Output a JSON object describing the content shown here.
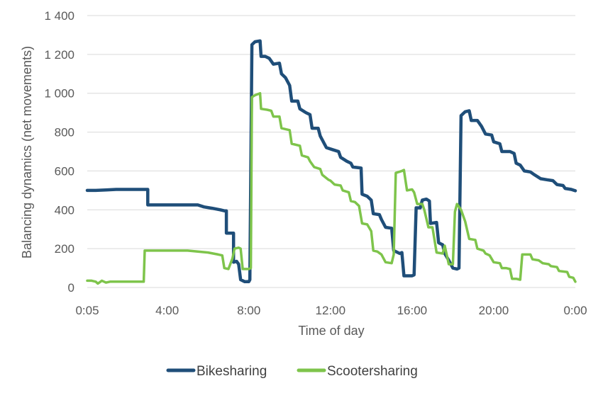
{
  "chart_data": {
    "type": "line",
    "xlabel": "Time of day",
    "ylabel": "Balancing dynamics (net movements)",
    "x_ticks": [
      "0:05",
      "4:00",
      "8:00",
      "12:00",
      "16:00",
      "20:00",
      "0:00"
    ],
    "x_tick_hours": [
      0.083,
      4,
      8,
      12,
      16,
      20,
      24
    ],
    "xlim": [
      0.083,
      24
    ],
    "ylim": [
      0,
      1400
    ],
    "y_ticks": [
      0,
      200,
      400,
      600,
      800,
      1000,
      1200,
      1400
    ],
    "y_tick_labels": [
      "0",
      "200",
      "400",
      "600",
      "800",
      "1 000",
      "1 200",
      "1 400"
    ],
    "grid": "horizontal",
    "legend_position": "bottom",
    "series": [
      {
        "name": "Bikesharing",
        "color": "#1f4e79",
        "points": [
          [
            0.083,
            500
          ],
          [
            0.5,
            500
          ],
          [
            1,
            502
          ],
          [
            1.5,
            505
          ],
          [
            2,
            505
          ],
          [
            2.5,
            505
          ],
          [
            2.9,
            505
          ],
          [
            3.05,
            505
          ],
          [
            3.05,
            425
          ],
          [
            3.5,
            425
          ],
          [
            4,
            425
          ],
          [
            4.5,
            425
          ],
          [
            5,
            425
          ],
          [
            5.5,
            425
          ],
          [
            5.8,
            415
          ],
          [
            6.2,
            408
          ],
          [
            6.6,
            400
          ],
          [
            6.8,
            395
          ],
          [
            6.9,
            395
          ],
          [
            6.9,
            280
          ],
          [
            7.1,
            280
          ],
          [
            7.25,
            280
          ],
          [
            7.25,
            130
          ],
          [
            7.4,
            135
          ],
          [
            7.5,
            120
          ],
          [
            7.6,
            40
          ],
          [
            7.8,
            30
          ],
          [
            8.0,
            30
          ],
          [
            8.05,
            40
          ],
          [
            8.15,
            1250
          ],
          [
            8.3,
            1265
          ],
          [
            8.55,
            1270
          ],
          [
            8.6,
            1190
          ],
          [
            8.8,
            1190
          ],
          [
            9.0,
            1180
          ],
          [
            9.2,
            1150
          ],
          [
            9.5,
            1155
          ],
          [
            9.6,
            1100
          ],
          [
            9.8,
            1080
          ],
          [
            10.0,
            1040
          ],
          [
            10.1,
            960
          ],
          [
            10.4,
            960
          ],
          [
            10.5,
            920
          ],
          [
            10.8,
            900
          ],
          [
            11.0,
            890
          ],
          [
            11.1,
            820
          ],
          [
            11.4,
            820
          ],
          [
            11.5,
            780
          ],
          [
            11.8,
            720
          ],
          [
            12.1,
            710
          ],
          [
            12.4,
            700
          ],
          [
            12.5,
            670
          ],
          [
            12.8,
            650
          ],
          [
            13.0,
            640
          ],
          [
            13.1,
            620
          ],
          [
            13.5,
            615
          ],
          [
            13.55,
            480
          ],
          [
            13.8,
            470
          ],
          [
            14.0,
            450
          ],
          [
            14.1,
            380
          ],
          [
            14.4,
            375
          ],
          [
            14.5,
            350
          ],
          [
            14.7,
            310
          ],
          [
            15.0,
            305
          ],
          [
            15.1,
            190
          ],
          [
            15.4,
            175
          ],
          [
            15.5,
            180
          ],
          [
            15.6,
            60
          ],
          [
            16.0,
            60
          ],
          [
            16.1,
            65
          ],
          [
            16.2,
            410
          ],
          [
            16.4,
            410
          ],
          [
            16.5,
            450
          ],
          [
            16.7,
            455
          ],
          [
            16.85,
            445
          ],
          [
            16.9,
            330
          ],
          [
            17.2,
            335
          ],
          [
            17.3,
            230
          ],
          [
            17.5,
            220
          ],
          [
            17.6,
            175
          ],
          [
            17.8,
            140
          ],
          [
            18.0,
            100
          ],
          [
            18.2,
            95
          ],
          [
            18.3,
            100
          ],
          [
            18.4,
            885
          ],
          [
            18.6,
            905
          ],
          [
            18.8,
            910
          ],
          [
            18.9,
            860
          ],
          [
            19.2,
            860
          ],
          [
            19.4,
            830
          ],
          [
            19.6,
            790
          ],
          [
            19.9,
            785
          ],
          [
            20.0,
            750
          ],
          [
            20.3,
            740
          ],
          [
            20.4,
            700
          ],
          [
            20.8,
            700
          ],
          [
            21.0,
            690
          ],
          [
            21.1,
            640
          ],
          [
            21.3,
            630
          ],
          [
            21.5,
            600
          ],
          [
            21.8,
            595
          ],
          [
            22.0,
            580
          ],
          [
            22.3,
            560
          ],
          [
            22.6,
            555
          ],
          [
            22.9,
            550
          ],
          [
            23.1,
            530
          ],
          [
            23.4,
            525
          ],
          [
            23.5,
            510
          ],
          [
            23.8,
            505
          ],
          [
            24.0,
            498
          ]
        ]
      },
      {
        "name": "Scootersharing",
        "color": "#7ec44b",
        "points": [
          [
            0.083,
            35
          ],
          [
            0.3,
            35
          ],
          [
            0.5,
            30
          ],
          [
            0.6,
            20
          ],
          [
            0.8,
            35
          ],
          [
            1.0,
            25
          ],
          [
            1.2,
            30
          ],
          [
            1.5,
            30
          ],
          [
            2.0,
            30
          ],
          [
            2.5,
            30
          ],
          [
            2.85,
            30
          ],
          [
            2.9,
            190
          ],
          [
            3.1,
            190
          ],
          [
            3.5,
            190
          ],
          [
            4,
            190
          ],
          [
            4.5,
            190
          ],
          [
            5,
            190
          ],
          [
            5.5,
            185
          ],
          [
            6,
            180
          ],
          [
            6.5,
            170
          ],
          [
            6.7,
            165
          ],
          [
            6.8,
            100
          ],
          [
            7.0,
            95
          ],
          [
            7.2,
            150
          ],
          [
            7.3,
            200
          ],
          [
            7.5,
            205
          ],
          [
            7.6,
            200
          ],
          [
            7.7,
            95
          ],
          [
            8.0,
            95
          ],
          [
            8.1,
            100
          ],
          [
            8.15,
            980
          ],
          [
            8.3,
            990
          ],
          [
            8.55,
            1000
          ],
          [
            8.6,
            920
          ],
          [
            8.9,
            915
          ],
          [
            9.1,
            910
          ],
          [
            9.2,
            880
          ],
          [
            9.5,
            880
          ],
          [
            9.6,
            820
          ],
          [
            10.0,
            810
          ],
          [
            10.1,
            740
          ],
          [
            10.5,
            730
          ],
          [
            10.6,
            680
          ],
          [
            10.9,
            670
          ],
          [
            11.0,
            650
          ],
          [
            11.2,
            620
          ],
          [
            11.5,
            610
          ],
          [
            11.6,
            580
          ],
          [
            11.9,
            555
          ],
          [
            12.0,
            550
          ],
          [
            12.2,
            530
          ],
          [
            12.5,
            525
          ],
          [
            12.6,
            500
          ],
          [
            12.9,
            490
          ],
          [
            13.0,
            445
          ],
          [
            13.2,
            440
          ],
          [
            13.4,
            420
          ],
          [
            13.55,
            330
          ],
          [
            13.8,
            325
          ],
          [
            14.0,
            290
          ],
          [
            14.1,
            190
          ],
          [
            14.3,
            185
          ],
          [
            14.5,
            170
          ],
          [
            14.7,
            130
          ],
          [
            15.0,
            125
          ],
          [
            15.1,
            170
          ],
          [
            15.2,
            590
          ],
          [
            15.5,
            600
          ],
          [
            15.6,
            605
          ],
          [
            15.75,
            500
          ],
          [
            16.0,
            505
          ],
          [
            16.1,
            490
          ],
          [
            16.25,
            430
          ],
          [
            16.5,
            430
          ],
          [
            16.6,
            400
          ],
          [
            16.8,
            310
          ],
          [
            17.0,
            310
          ],
          [
            17.2,
            180
          ],
          [
            17.5,
            175
          ],
          [
            17.6,
            215
          ],
          [
            17.8,
            120
          ],
          [
            18.0,
            120
          ],
          [
            18.1,
            390
          ],
          [
            18.2,
            430
          ],
          [
            18.4,
            400
          ],
          [
            18.6,
            340
          ],
          [
            18.8,
            250
          ],
          [
            19.1,
            245
          ],
          [
            19.2,
            200
          ],
          [
            19.5,
            190
          ],
          [
            19.6,
            175
          ],
          [
            19.8,
            165
          ],
          [
            20.0,
            130
          ],
          [
            20.3,
            125
          ],
          [
            20.4,
            100
          ],
          [
            20.6,
            100
          ],
          [
            20.8,
            95
          ],
          [
            20.9,
            45
          ],
          [
            21.1,
            45
          ],
          [
            21.3,
            40
          ],
          [
            21.4,
            170
          ],
          [
            21.8,
            170
          ],
          [
            21.9,
            145
          ],
          [
            22.2,
            140
          ],
          [
            22.4,
            125
          ],
          [
            22.7,
            120
          ],
          [
            22.8,
            110
          ],
          [
            23.1,
            105
          ],
          [
            23.2,
            85
          ],
          [
            23.6,
            80
          ],
          [
            23.7,
            55
          ],
          [
            23.9,
            50
          ],
          [
            24.0,
            30
          ]
        ]
      }
    ]
  }
}
